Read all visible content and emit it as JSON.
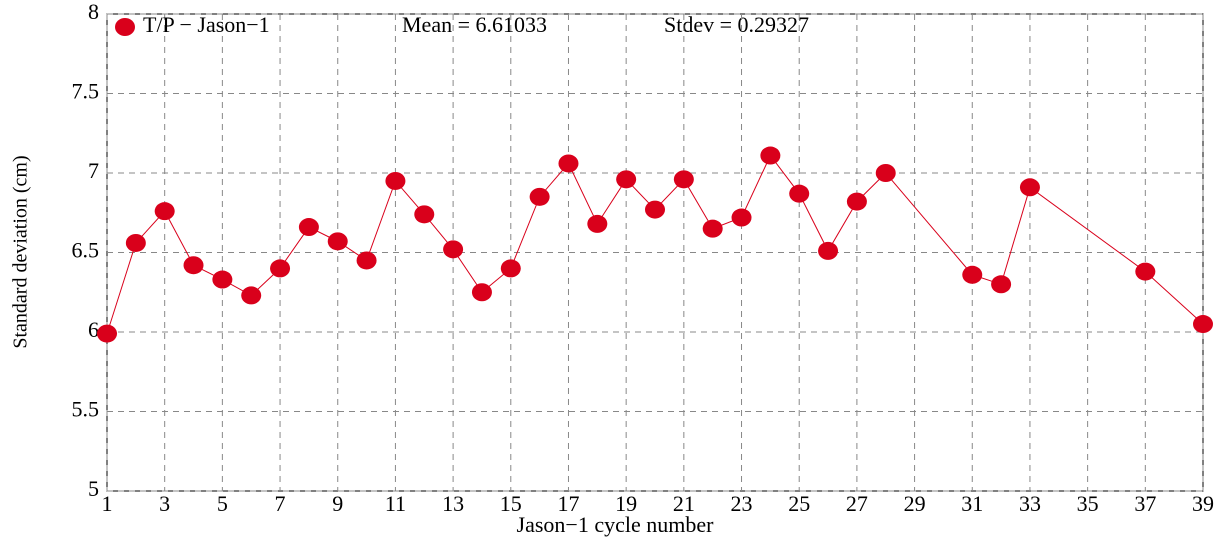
{
  "chart_data": {
    "type": "line",
    "xlabel": "Jason−1 cycle number",
    "ylabel": "Standard deviation (cm)",
    "annotations": [
      "Mean = 6.61033",
      "Stdev = 0.29327"
    ],
    "legend": "upper left",
    "grid": true,
    "x": [
      1,
      2,
      3,
      4,
      5,
      6,
      7,
      8,
      9,
      10,
      11,
      12,
      13,
      14,
      15,
      16,
      17,
      18,
      19,
      20,
      21,
      22,
      23,
      24,
      25,
      26,
      27,
      28,
      31,
      32,
      33,
      37,
      39
    ],
    "series": [
      {
        "name": "T/P − Jason−1",
        "color": "#d9001b",
        "values": [
          5.99,
          6.56,
          6.76,
          6.42,
          6.33,
          6.23,
          6.4,
          6.66,
          6.57,
          6.45,
          6.95,
          6.74,
          6.52,
          6.25,
          6.4,
          6.85,
          7.06,
          6.68,
          6.96,
          6.77,
          6.96,
          6.65,
          6.72,
          7.11,
          6.87,
          6.51,
          6.82,
          7.0,
          6.36,
          6.3,
          6.91,
          6.38,
          6.05
        ]
      }
    ],
    "xlim": [
      1,
      39
    ],
    "xticks": [
      1,
      3,
      5,
      7,
      9,
      11,
      13,
      15,
      17,
      19,
      21,
      23,
      25,
      27,
      29,
      31,
      33,
      35,
      37,
      39
    ],
    "ylim": [
      5,
      8
    ],
    "yticks": [
      5,
      5.5,
      6,
      6.5,
      7,
      7.5,
      8
    ]
  }
}
